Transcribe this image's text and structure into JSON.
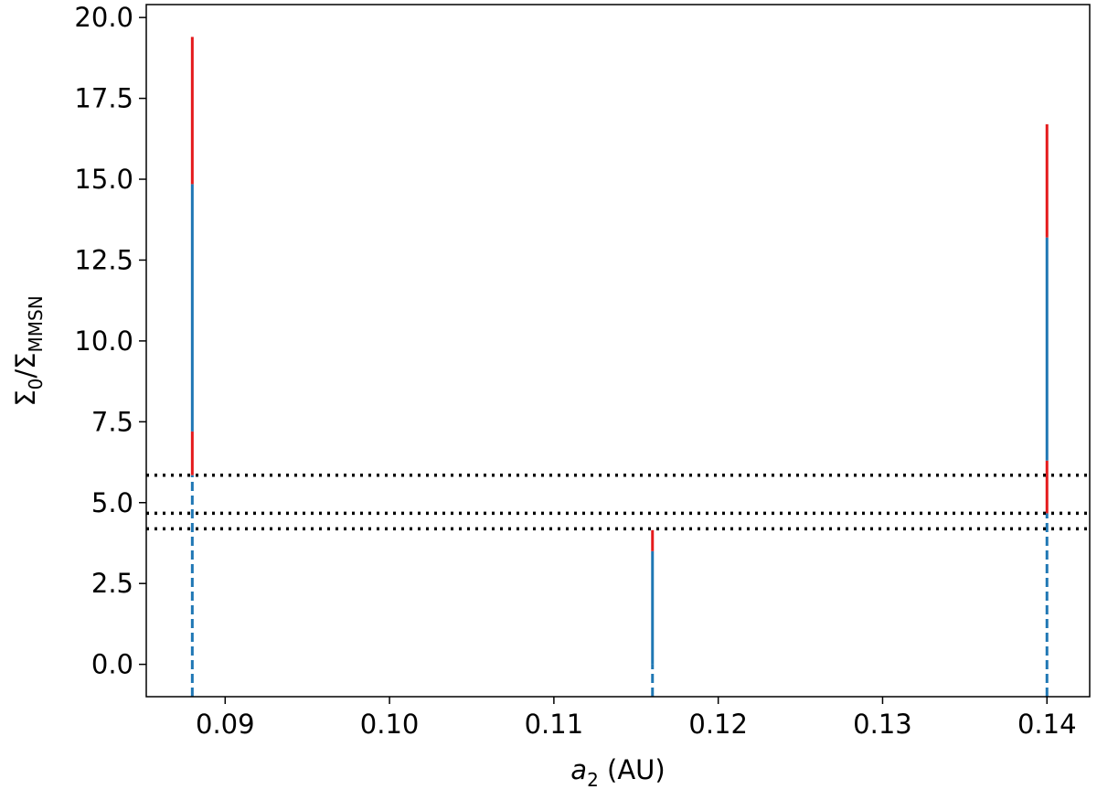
{
  "chart_data": {
    "type": "segments",
    "x_label": [
      "a",
      "2",
      " (AU)"
    ],
    "y_label": [
      "Σ",
      "0",
      "/Σ",
      "MMSN"
    ],
    "xlim": [
      0.0852,
      0.1426
    ],
    "ylim": [
      -1,
      20.4
    ],
    "xticks": [
      0.09,
      {
        "value": 0.1,
        "label": "0.10"
      },
      0.11,
      0.12,
      0.13,
      0.14
    ],
    "yticks": [
      {
        "value": 0,
        "label": "0.0"
      },
      2.5,
      {
        "value": 5,
        "label": "5.0"
      },
      7.5,
      {
        "value": 10,
        "label": "10.0"
      },
      12.5,
      {
        "value": 15,
        "label": "15.0"
      },
      17.5,
      {
        "value": 20,
        "label": "20.0"
      }
    ],
    "segments": [
      {
        "x": 0.088,
        "y": [
          -1,
          5.85
        ],
        "color": "#1f77b4",
        "dashed": true
      },
      {
        "x": 0.088,
        "y": [
          5.85,
          7.2
        ],
        "color": "#e41a1c",
        "dashed": false
      },
      {
        "x": 0.088,
        "y": [
          7.2,
          14.85
        ],
        "color": "#1f77b4",
        "dashed": false
      },
      {
        "x": 0.088,
        "y": [
          14.85,
          19.4
        ],
        "color": "#e41a1c",
        "dashed": false
      },
      {
        "x": 0.116,
        "y": [
          -1,
          0
        ],
        "color": "#1f77b4",
        "dashed": true
      },
      {
        "x": 0.116,
        "y": [
          0,
          3.5
        ],
        "color": "#1f77b4",
        "dashed": false
      },
      {
        "x": 0.116,
        "y": [
          3.5,
          4.15
        ],
        "color": "#e41a1c",
        "dashed": false
      },
      {
        "x": 0.14,
        "y": [
          -1,
          4.67
        ],
        "color": "#1f77b4",
        "dashed": true
      },
      {
        "x": 0.14,
        "y": [
          4.67,
          6.3
        ],
        "color": "#e41a1c",
        "dashed": false
      },
      {
        "x": 0.14,
        "y": [
          6.3,
          13.2
        ],
        "color": "#1f77b4",
        "dashed": false
      },
      {
        "x": 0.14,
        "y": [
          13.2,
          16.7
        ],
        "color": "#e41a1c",
        "dashed": false
      }
    ],
    "hlines": [
      5.85,
      4.67,
      4.19
    ],
    "hline_color": "#000000"
  }
}
